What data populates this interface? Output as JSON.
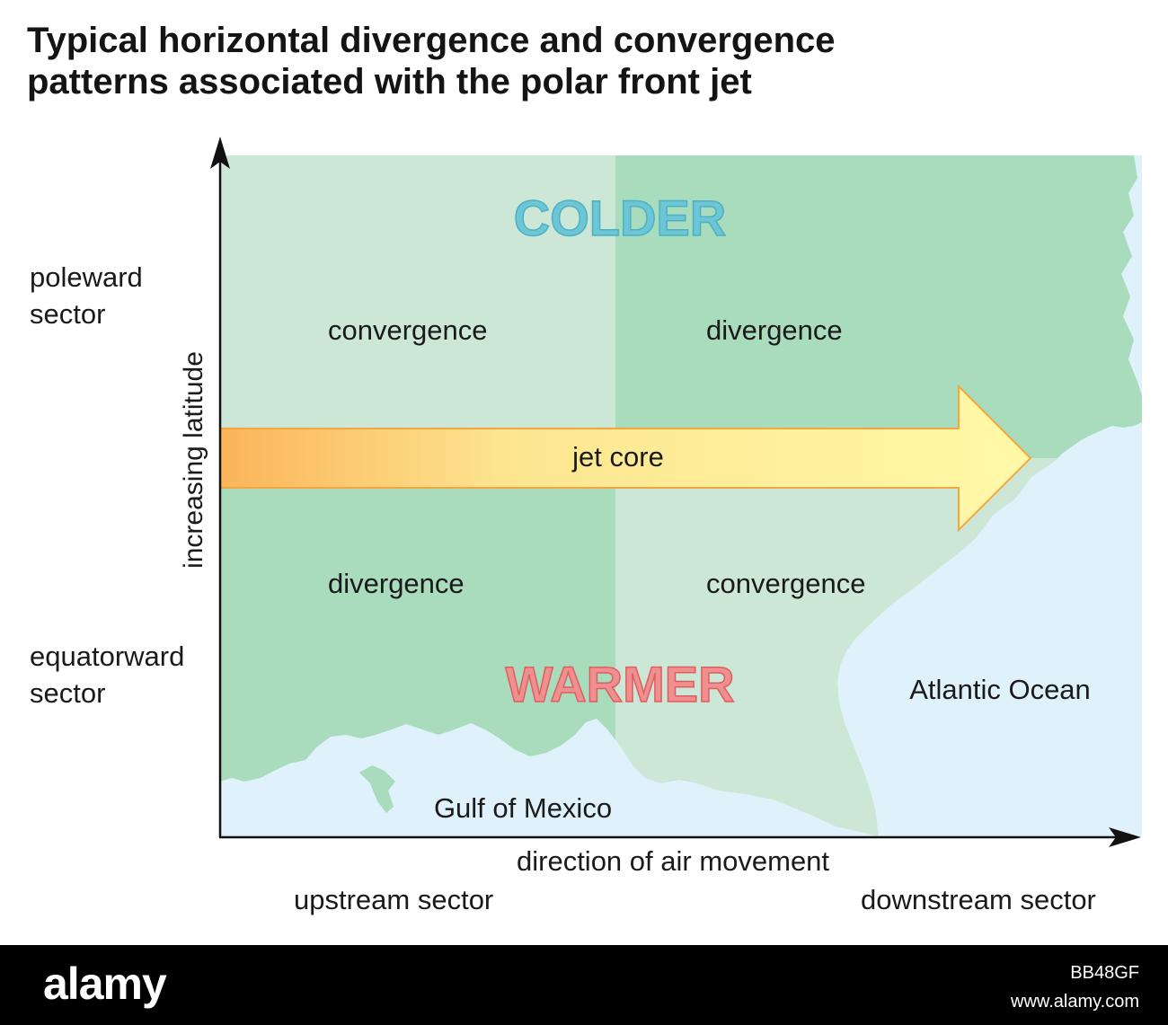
{
  "title": {
    "line1": "Typical horizontal divergence and convergence",
    "line2": "patterns associated with the polar front jet"
  },
  "regions": {
    "colder": "COLDER",
    "warmer": "WARMER",
    "top_left": "convergence",
    "top_right": "divergence",
    "bottom_left": "divergence",
    "bottom_right": "convergence",
    "jet": "jet core"
  },
  "geography": {
    "atlantic": "Atlantic Ocean",
    "gulf": "Gulf of Mexico"
  },
  "axes": {
    "y_label": "increasing latitude",
    "x_label": "direction of air movement",
    "poleward": "poleward sector",
    "equatorward": "equatorward sector",
    "upstream": "upstream sector",
    "downstream": "downstream sector"
  },
  "footer": {
    "logo": "alamy",
    "image_id": "BB48GF",
    "url": "www.alamy.com"
  },
  "colors": {
    "land_light": "#cce7d6",
    "land_dark": "#a9dbbd",
    "water": "#dff1fb",
    "colder_text": "#6cc6d6",
    "warmer_text": "#ef8f8f",
    "jet_start": "#fbb55a",
    "jet_end": "#fff7a6"
  }
}
